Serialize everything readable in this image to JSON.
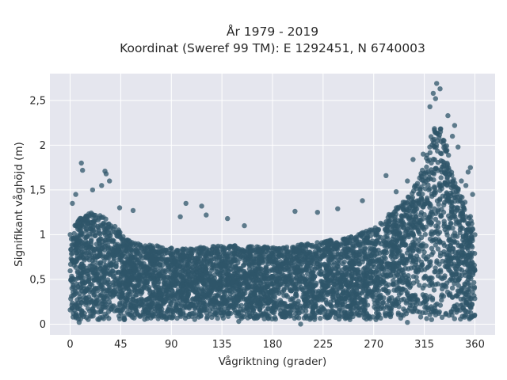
{
  "chart_data": {
    "type": "scatter",
    "title_line1": "År 1979 - 2019",
    "title_line2": "Koordinat (Sweref 99 TM): E 1292451, N 6740003",
    "xlabel": "Vågriktning (grader)",
    "ylabel": "Signifikant våghöjd (m)",
    "xlim": [
      -18,
      378
    ],
    "ylim": [
      -0.12,
      2.8
    ],
    "xticks": [
      0,
      45,
      90,
      135,
      180,
      225,
      270,
      315,
      360
    ],
    "xtick_labels": [
      "0",
      "45",
      "90",
      "135",
      "180",
      "225",
      "270",
      "315",
      "360"
    ],
    "yticks": [
      0,
      0.5,
      1,
      1.5,
      2,
      2.5
    ],
    "ytick_labels": [
      "0",
      "0,5",
      "1",
      "1,5",
      "2",
      "2,5"
    ],
    "grid": true,
    "marker_color": "#2f5569",
    "plot_background": "#e5e6ee",
    "envelope": {
      "x": [
        0,
        10,
        20,
        30,
        40,
        50,
        60,
        75,
        90,
        105,
        120,
        135,
        150,
        165,
        180,
        195,
        210,
        225,
        240,
        255,
        265,
        275,
        285,
        295,
        305,
        312,
        318,
        322,
        326,
        330,
        334,
        338,
        342,
        346,
        350,
        355,
        360
      ],
      "upper": [
        1.05,
        1.2,
        1.25,
        1.2,
        1.1,
        0.95,
        0.9,
        0.88,
        0.85,
        0.85,
        0.87,
        0.88,
        0.88,
        0.87,
        0.86,
        0.87,
        0.9,
        0.93,
        0.95,
        1.0,
        1.05,
        1.12,
        1.25,
        1.35,
        1.5,
        1.7,
        1.95,
        2.15,
        2.3,
        2.25,
        2.05,
        1.8,
        1.6,
        1.5,
        1.4,
        1.25,
        1.1
      ],
      "lower": 0.05
    },
    "outliers": [
      {
        "x": 10,
        "y": 1.8
      },
      {
        "x": 11,
        "y": 1.72
      },
      {
        "x": 31,
        "y": 1.71
      },
      {
        "x": 32,
        "y": 1.68
      },
      {
        "x": 35,
        "y": 1.6
      },
      {
        "x": 28,
        "y": 1.55
      },
      {
        "x": 5,
        "y": 1.45
      },
      {
        "x": 2,
        "y": 1.35
      },
      {
        "x": 20,
        "y": 1.5
      },
      {
        "x": 44,
        "y": 1.3
      },
      {
        "x": 56,
        "y": 1.27
      },
      {
        "x": 103,
        "y": 1.35
      },
      {
        "x": 117,
        "y": 1.32
      },
      {
        "x": 121,
        "y": 1.22
      },
      {
        "x": 98,
        "y": 1.2
      },
      {
        "x": 140,
        "y": 1.18
      },
      {
        "x": 155,
        "y": 1.1
      },
      {
        "x": 200,
        "y": 1.26
      },
      {
        "x": 220,
        "y": 1.25
      },
      {
        "x": 238,
        "y": 1.29
      },
      {
        "x": 260,
        "y": 1.38
      },
      {
        "x": 281,
        "y": 1.66
      },
      {
        "x": 290,
        "y": 1.48
      },
      {
        "x": 300,
        "y": 1.6
      },
      {
        "x": 305,
        "y": 1.84
      },
      {
        "x": 314,
        "y": 1.9
      },
      {
        "x": 326,
        "y": 2.69
      },
      {
        "x": 329,
        "y": 2.63
      },
      {
        "x": 323,
        "y": 2.58
      },
      {
        "x": 325,
        "y": 2.52
      },
      {
        "x": 320,
        "y": 2.43
      },
      {
        "x": 336,
        "y": 2.33
      },
      {
        "x": 342,
        "y": 2.22
      },
      {
        "x": 340,
        "y": 2.1
      },
      {
        "x": 345,
        "y": 1.98
      },
      {
        "x": 356,
        "y": 1.75
      },
      {
        "x": 354,
        "y": 1.7
      },
      {
        "x": 352,
        "y": 1.55
      },
      {
        "x": 348,
        "y": 1.6
      },
      {
        "x": 358,
        "y": 1.45
      },
      {
        "x": 8,
        "y": 0.02
      },
      {
        "x": 205,
        "y": 0.0
      },
      {
        "x": 300,
        "y": 0.02
      },
      {
        "x": 150,
        "y": 0.03
      }
    ]
  }
}
